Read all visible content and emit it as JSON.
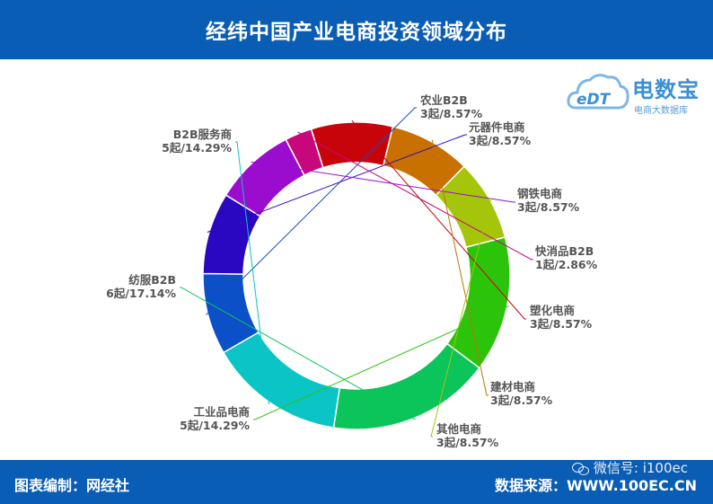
{
  "header": {
    "title": "经纬中国产业电商投资领域分布"
  },
  "footer": {
    "left": "图表编制：网经社",
    "right": "数据来源：WWW.100EC.CN",
    "wechat": "微信号: i100ec"
  },
  "logo": {
    "cloud_text": "eDT",
    "brand": "电数宝",
    "tagline": "电商大数据库",
    "icon": "cloud-icon"
  },
  "chart_data": {
    "type": "pie",
    "style": "donut",
    "title": "经纬中国产业电商投资领域分布",
    "unit": "起",
    "slices": [
      {
        "name": "农业B2B",
        "count": 3,
        "percent": 8.57,
        "label": "3起/8.57%",
        "color": "#0b50c6"
      },
      {
        "name": "元器件电商",
        "count": 3,
        "percent": 8.57,
        "label": "3起/8.57%",
        "color": "#2a08c2"
      },
      {
        "name": "钢铁电商",
        "count": 3,
        "percent": 8.57,
        "label": "3起/8.57%",
        "color": "#9a0dcf"
      },
      {
        "name": "快消品B2B",
        "count": 1,
        "percent": 2.86,
        "label": "1起/2.86%",
        "color": "#c8087a"
      },
      {
        "name": "塑化电商",
        "count": 3,
        "percent": 8.57,
        "label": "3起/8.57%",
        "color": "#c8040b"
      },
      {
        "name": "建材电商",
        "count": 3,
        "percent": 8.57,
        "label": "3起/8.57%",
        "color": "#c87000"
      },
      {
        "name": "其他电商",
        "count": 3,
        "percent": 8.57,
        "label": "3起/8.57%",
        "color": "#a5c50a"
      },
      {
        "name": "工业品电商",
        "count": 5,
        "percent": 14.29,
        "label": "5起/14.29%",
        "color": "#2cc40b"
      },
      {
        "name": "纺服B2B",
        "count": 6,
        "percent": 17.14,
        "label": "6起/17.14%",
        "color": "#0bc45a"
      },
      {
        "name": "B2B服务商",
        "count": 5,
        "percent": 14.29,
        "label": "5起/14.29%",
        "color": "#0bc4c6"
      }
    ]
  }
}
